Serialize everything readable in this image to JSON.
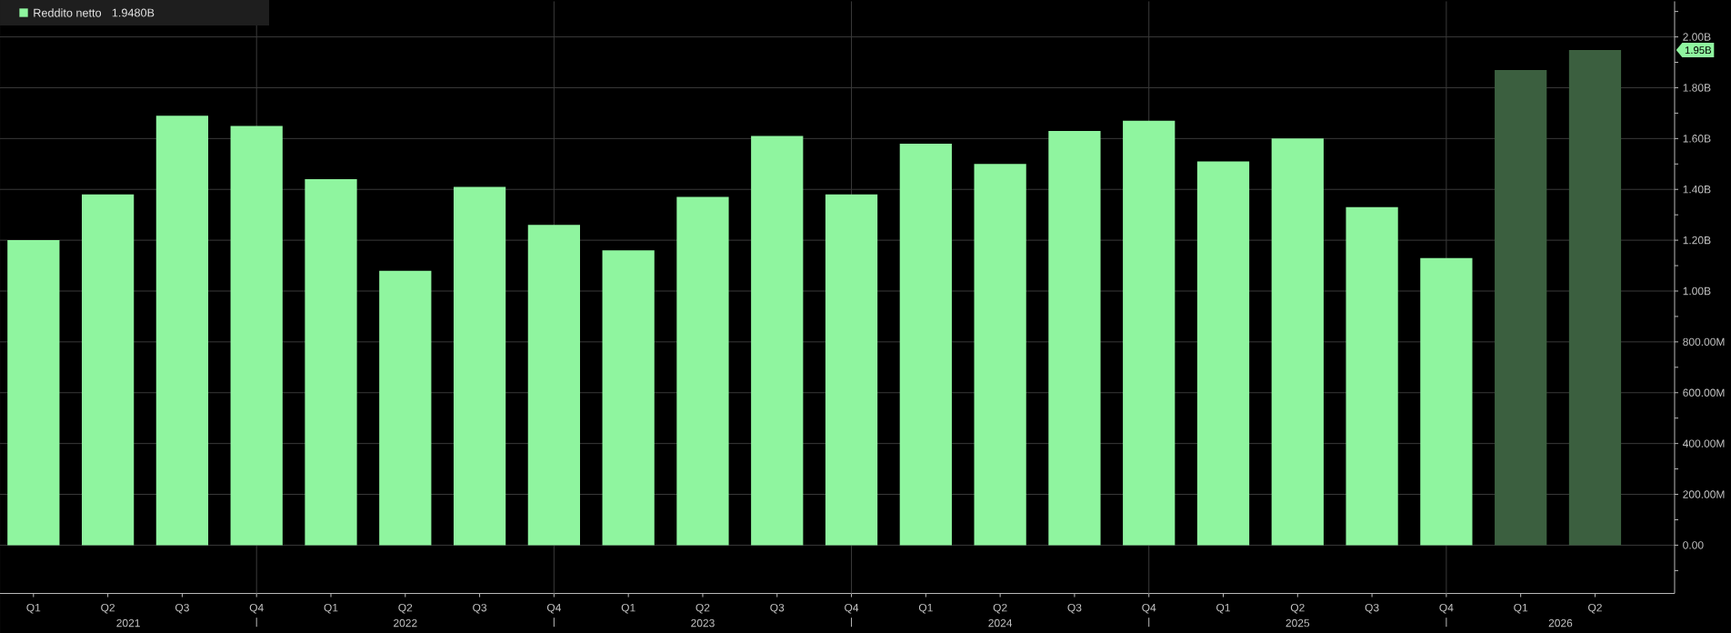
{
  "chart_data": {
    "type": "bar",
    "categories": [
      "Q1",
      "Q2",
      "Q3",
      "Q4",
      "Q1",
      "Q2",
      "Q3",
      "Q4",
      "Q1",
      "Q2",
      "Q3",
      "Q4",
      "Q1",
      "Q2",
      "Q3",
      "Q4",
      "Q1",
      "Q2",
      "Q3",
      "Q4",
      "Q1",
      "Q2"
    ],
    "series": [
      {
        "name": "Reddito netto",
        "color": "#8ff59f",
        "colors": [
          "#8ff59f",
          "#8ff59f",
          "#8ff59f",
          "#8ff59f",
          "#8ff59f",
          "#8ff59f",
          "#8ff59f",
          "#8ff59f",
          "#8ff59f",
          "#8ff59f",
          "#8ff59f",
          "#8ff59f",
          "#8ff59f",
          "#8ff59f",
          "#8ff59f",
          "#8ff59f",
          "#8ff59f",
          "#8ff59f",
          "#8ff59f",
          "#8ff59f",
          "#3b5f3f",
          "#3b5f3f"
        ],
        "values": [
          1200000000,
          1380000000,
          1690000000,
          1650000000,
          1440000000,
          1080000000,
          1410000000,
          1260000000,
          1160000000,
          1370000000,
          1610000000,
          1380000000,
          1580000000,
          1500000000,
          1630000000,
          1670000000,
          1510000000,
          1600000000,
          1330000000,
          1130000000,
          1870000000,
          1948000000
        ]
      }
    ],
    "ylim": [
      -190000000,
      2140000000
    ],
    "yticks": [
      {
        "value": -100000000,
        "label": null
      },
      {
        "value": 0,
        "label": "0.00"
      },
      {
        "value": 100000000,
        "label": null
      },
      {
        "value": 200000000,
        "label": "200.00M"
      },
      {
        "value": 300000000,
        "label": null
      },
      {
        "value": 400000000,
        "label": "400.00M"
      },
      {
        "value": 500000000,
        "label": null
      },
      {
        "value": 600000000,
        "label": "600.00M"
      },
      {
        "value": 700000000,
        "label": null
      },
      {
        "value": 800000000,
        "label": "800.00M"
      },
      {
        "value": 900000000,
        "label": null
      },
      {
        "value": 1000000000,
        "label": "1.00B"
      },
      {
        "value": 1100000000,
        "label": null
      },
      {
        "value": 1200000000,
        "label": "1.20B"
      },
      {
        "value": 1300000000,
        "label": null
      },
      {
        "value": 1400000000,
        "label": "1.40B"
      },
      {
        "value": 1500000000,
        "label": null
      },
      {
        "value": 1600000000,
        "label": "1.60B"
      },
      {
        "value": 1700000000,
        "label": null
      },
      {
        "value": 1800000000,
        "label": "1.80B"
      },
      {
        "value": 1900000000,
        "label": null
      },
      {
        "value": 2000000000,
        "label": "2.00B"
      },
      {
        "value": 2100000000,
        "label": null
      }
    ],
    "grid": true,
    "legend": "top left",
    "annotations": [
      "1.95B",
      "1.9480B",
      "2021",
      "2022",
      "2023",
      "2024",
      "2025",
      "2026"
    ]
  }
}
